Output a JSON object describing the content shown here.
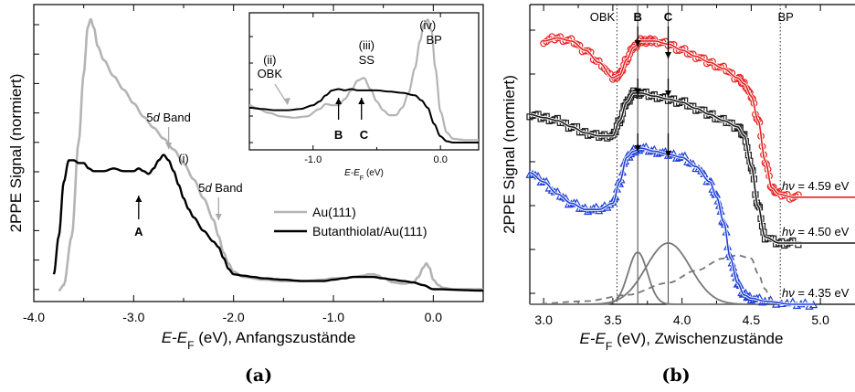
{
  "chart_data": [
    {
      "panel": "(a)",
      "type": "line",
      "xlabel_italic": "E-E",
      "xlabel_sub": "F",
      "xlabel_rest": " (eV), Anfangszustände",
      "ylabel": "2PPE Signal (normiert)",
      "xlim": [
        -4.0,
        0.5
      ],
      "xticks": [
        "-4.0",
        "-3.0",
        "-2.0",
        "-1.0",
        "0.0"
      ],
      "yticks_labeled": false,
      "series": [
        {
          "name": "Au(111)",
          "color": "#b4b4b4",
          "x": [
            -3.75,
            -3.7,
            -3.62,
            -3.55,
            -3.5,
            -3.46,
            -3.43,
            -3.4,
            -3.36,
            -3.3,
            -3.2,
            -3.1,
            -3.0,
            -2.9,
            -2.8,
            -2.7,
            -2.6,
            -2.5,
            -2.4,
            -2.3,
            -2.2,
            -2.15,
            -2.1,
            -2.05,
            -2.0,
            -1.9,
            -1.7,
            -1.5,
            -1.3,
            -1.1,
            -1.0,
            -0.9,
            -0.8,
            -0.7,
            -0.65,
            -0.6,
            -0.55,
            -0.5,
            -0.4,
            -0.3,
            -0.2,
            -0.15,
            -0.1,
            -0.07,
            -0.04,
            0.0,
            0.05,
            0.1,
            0.2,
            0.5
          ],
          "values": [
            0.0,
            0.02,
            0.2,
            0.55,
            0.8,
            0.97,
            1.0,
            0.97,
            0.9,
            0.85,
            0.79,
            0.74,
            0.69,
            0.64,
            0.6,
            0.56,
            0.52,
            0.47,
            0.41,
            0.34,
            0.26,
            0.2,
            0.14,
            0.1,
            0.07,
            0.05,
            0.04,
            0.035,
            0.035,
            0.04,
            0.045,
            0.045,
            0.05,
            0.055,
            0.06,
            0.06,
            0.055,
            0.045,
            0.03,
            0.025,
            0.03,
            0.05,
            0.085,
            0.1,
            0.085,
            0.04,
            0.02,
            0.01,
            0.005,
            0.005
          ]
        },
        {
          "name": "Butanthiolat/Au(111)",
          "color": "#000000",
          "x": [
            -3.8,
            -3.75,
            -3.7,
            -3.65,
            -3.6,
            -3.55,
            -3.5,
            -3.45,
            -3.4,
            -3.3,
            -3.2,
            -3.1,
            -3.0,
            -2.95,
            -2.9,
            -2.85,
            -2.8,
            -2.75,
            -2.7,
            -2.65,
            -2.6,
            -2.55,
            -2.5,
            -2.45,
            -2.4,
            -2.3,
            -2.2,
            -2.15,
            -2.1,
            -2.05,
            -2.0,
            -1.9,
            -1.8,
            -1.7,
            -1.5,
            -1.3,
            -1.1,
            -1.0,
            -0.9,
            -0.8,
            -0.7,
            -0.6,
            -0.5,
            -0.4,
            -0.3,
            -0.2,
            -0.1,
            0.0,
            0.5
          ],
          "values": [
            0.06,
            0.2,
            0.4,
            0.48,
            0.48,
            0.47,
            0.47,
            0.45,
            0.44,
            0.44,
            0.45,
            0.44,
            0.44,
            0.45,
            0.44,
            0.43,
            0.45,
            0.48,
            0.5,
            0.48,
            0.44,
            0.39,
            0.34,
            0.3,
            0.27,
            0.22,
            0.18,
            0.16,
            0.12,
            0.08,
            0.06,
            0.055,
            0.05,
            0.045,
            0.04,
            0.035,
            0.035,
            0.04,
            0.045,
            0.05,
            0.05,
            0.05,
            0.045,
            0.04,
            0.035,
            0.03,
            0.02,
            0.005,
            0.0
          ]
        }
      ],
      "legend": {
        "position": "right",
        "entries": [
          "Au(111)",
          "Butanthiolat/Au(111)"
        ]
      },
      "annotations": [
        {
          "text": "5d Band",
          "x": -2.65,
          "arrow": "down"
        },
        {
          "text": "(i)",
          "x": -2.5
        },
        {
          "text": "5d Band",
          "x": -2.15,
          "arrow": "down"
        },
        {
          "text": "A",
          "x": -2.95,
          "arrow": "up"
        }
      ],
      "inset": {
        "xlim": [
          -1.5,
          0.3
        ],
        "xticks": [
          "-1.0",
          "0.0"
        ],
        "xlabel_italic": "E-E",
        "xlabel_sub": "F",
        "xlabel_rest": " (eV)",
        "labels": [
          "(ii)",
          "OBK",
          "(iii)",
          "SS",
          "(iv)",
          "BP",
          "B",
          "C"
        ],
        "series": [
          {
            "name": "Au(111)",
            "color": "#b4b4b4",
            "x": [
              -1.5,
              -1.45,
              -1.35,
              -1.25,
              -1.15,
              -1.05,
              -0.95,
              -0.9,
              -0.85,
              -0.8,
              -0.75,
              -0.7,
              -0.65,
              -0.6,
              -0.55,
              -0.5,
              -0.45,
              -0.4,
              -0.35,
              -0.3,
              -0.25,
              -0.2,
              -0.16,
              -0.13,
              -0.1,
              -0.07,
              -0.04,
              0.0,
              0.05,
              0.1,
              0.2,
              0.3
            ],
            "values": [
              0.3,
              0.28,
              0.24,
              0.21,
              0.2,
              0.21,
              0.27,
              0.31,
              0.3,
              0.3,
              0.35,
              0.42,
              0.5,
              0.52,
              0.43,
              0.33,
              0.26,
              0.22,
              0.22,
              0.28,
              0.4,
              0.6,
              0.82,
              0.95,
              0.99,
              0.9,
              0.6,
              0.25,
              0.08,
              0.03,
              0.02,
              0.02
            ]
          },
          {
            "name": "Butanthiolat/Au(111)",
            "color": "#000000",
            "x": [
              -1.5,
              -1.4,
              -1.3,
              -1.2,
              -1.1,
              -1.0,
              -0.95,
              -0.9,
              -0.85,
              -0.8,
              -0.75,
              -0.7,
              -0.65,
              -0.6,
              -0.5,
              -0.4,
              -0.3,
              -0.2,
              -0.15,
              -0.1,
              -0.05,
              0.0,
              0.05,
              0.1,
              0.3
            ],
            "values": [
              0.28,
              0.27,
              0.26,
              0.26,
              0.27,
              0.3,
              0.33,
              0.38,
              0.42,
              0.43,
              0.42,
              0.43,
              0.42,
              0.42,
              0.42,
              0.41,
              0.4,
              0.38,
              0.34,
              0.28,
              0.15,
              0.05,
              0.01,
              0.0,
              0.0
            ]
          }
        ]
      }
    },
    {
      "panel": "(b)",
      "type": "scatter",
      "xlabel_italic": "E-E",
      "xlabel_sub": "F",
      "xlabel_rest": " (eV), Zwischenzustände",
      "ylabel": "2PPE Signal (normiert)",
      "xlim": [
        2.9,
        5.25
      ],
      "xticks": [
        "3.0",
        "3.5",
        "4.0",
        "4.5",
        "5.0"
      ],
      "vlines": [
        {
          "x": 3.53,
          "style": "dotted",
          "label": "OBK"
        },
        {
          "x": 3.68,
          "style": "solid",
          "label": "B"
        },
        {
          "x": 3.9,
          "style": "solid",
          "label": "C"
        },
        {
          "x": 4.71,
          "style": "dotted",
          "label": "BP"
        }
      ],
      "series": [
        {
          "name": "4.59 eV",
          "label_prefix": "hν = ",
          "color": "#e52020",
          "marker": "circle",
          "x": [
            3.0,
            3.1,
            3.2,
            3.3,
            3.4,
            3.5,
            3.55,
            3.6,
            3.65,
            3.7,
            3.75,
            3.8,
            3.9,
            4.0,
            4.1,
            4.2,
            4.3,
            4.4,
            4.45,
            4.5,
            4.55,
            4.6,
            4.65,
            4.7,
            4.8,
            4.9,
            5.0,
            5.25
          ],
          "values": [
            0.86,
            0.87,
            0.86,
            0.83,
            0.79,
            0.74,
            0.75,
            0.8,
            0.84,
            0.86,
            0.86,
            0.86,
            0.85,
            0.83,
            0.81,
            0.79,
            0.77,
            0.74,
            0.72,
            0.68,
            0.6,
            0.47,
            0.38,
            0.36,
            0.35,
            0.35,
            0.35,
            0.35
          ]
        },
        {
          "name": "4.50 eV",
          "label_prefix": "hν = ",
          "color": "#1a1a1a",
          "marker": "square",
          "x": [
            2.9,
            3.0,
            3.1,
            3.2,
            3.3,
            3.4,
            3.5,
            3.55,
            3.6,
            3.65,
            3.7,
            3.8,
            3.9,
            4.0,
            4.1,
            4.2,
            4.3,
            4.4,
            4.45,
            4.5,
            4.55,
            4.6,
            4.7,
            4.8,
            5.0,
            5.25
          ],
          "values": [
            0.62,
            0.61,
            0.6,
            0.58,
            0.56,
            0.55,
            0.55,
            0.6,
            0.66,
            0.69,
            0.69,
            0.68,
            0.67,
            0.66,
            0.64,
            0.62,
            0.6,
            0.58,
            0.55,
            0.45,
            0.32,
            0.22,
            0.2,
            0.2,
            0.2,
            0.2
          ]
        },
        {
          "name": "4.35 eV",
          "label_prefix": "hν = ",
          "color": "#1f3fd6",
          "marker": "triangle",
          "x": [
            2.9,
            3.0,
            3.1,
            3.2,
            3.3,
            3.4,
            3.5,
            3.55,
            3.6,
            3.65,
            3.7,
            3.8,
            3.9,
            4.0,
            4.1,
            4.2,
            4.25,
            4.3,
            4.35,
            4.4,
            4.45,
            4.5,
            4.6,
            4.8,
            4.95
          ],
          "values": [
            0.43,
            0.4,
            0.36,
            0.33,
            0.31,
            0.31,
            0.33,
            0.4,
            0.48,
            0.5,
            0.51,
            0.5,
            0.49,
            0.48,
            0.45,
            0.4,
            0.35,
            0.27,
            0.15,
            0.07,
            0.03,
            0.02,
            0.01,
            0.0,
            0.0
          ]
        }
      ],
      "components": [
        {
          "type": "gaussian",
          "style": "solid",
          "color": "#777777",
          "center": 3.68,
          "amplitude": 0.17,
          "sigma": 0.07
        },
        {
          "type": "gaussian",
          "style": "solid",
          "color": "#777777",
          "center": 3.9,
          "amplitude": 0.2,
          "sigma": 0.16
        },
        {
          "type": "background",
          "style": "dashed",
          "color": "#777777",
          "x": [
            2.9,
            3.3,
            3.6,
            3.9,
            4.1,
            4.3,
            4.4,
            4.5,
            4.55,
            4.6,
            4.65
          ],
          "values": [
            0.0,
            0.01,
            0.03,
            0.07,
            0.11,
            0.15,
            0.16,
            0.15,
            0.1,
            0.05,
            0.0
          ]
        }
      ]
    }
  ]
}
